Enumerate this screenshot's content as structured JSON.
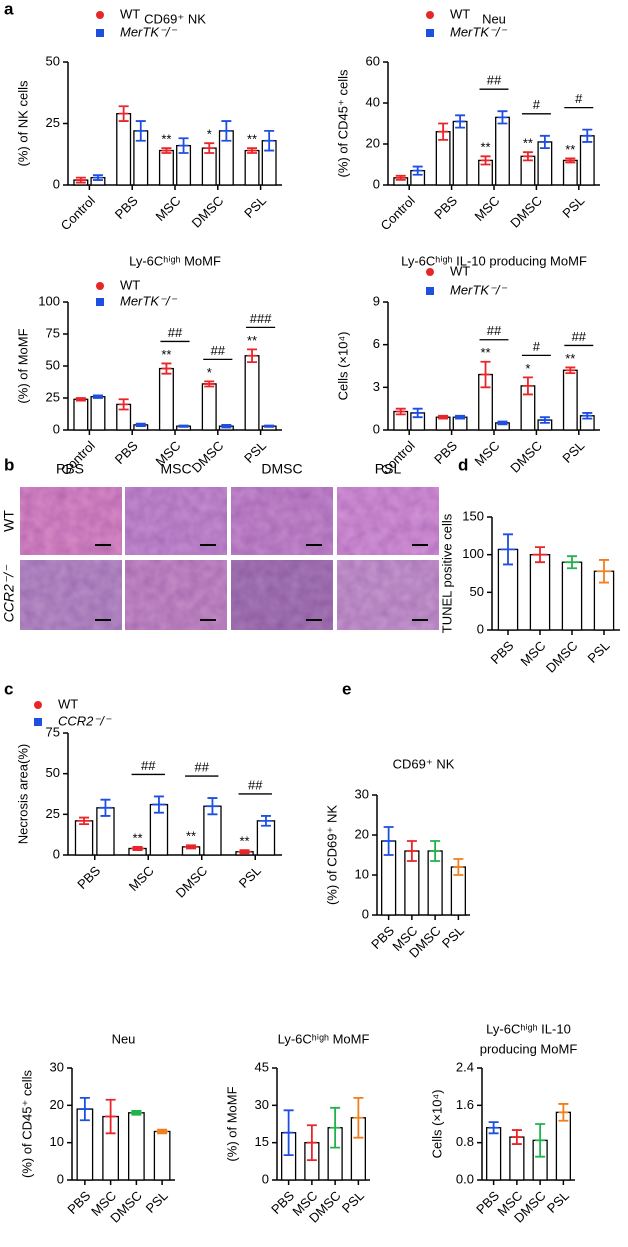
{
  "panel_labels": {
    "a": "a",
    "b": "b",
    "c": "c",
    "d": "d",
    "e": "e"
  },
  "histology": {
    "columns": [
      "PBS",
      "MSC",
      "DMSC",
      "PSL"
    ],
    "rows": [
      "WT",
      "CCR2⁻/⁻"
    ]
  },
  "chart_data": [
    {
      "type": "bar",
      "title": "CD69⁺ NK",
      "y_label": "(%) of NK cells",
      "categories": [
        "Control",
        "PBS",
        "MSC",
        "DMSC",
        "PSL"
      ],
      "series": [
        {
          "name": "WT",
          "color": "#e8262a",
          "marker": "circle",
          "values": [
            2,
            29,
            14,
            15,
            14
          ],
          "errors": [
            1,
            3,
            1,
            2,
            1
          ]
        },
        {
          "name": "MerTK⁻/⁻",
          "color": "#1f4fe0",
          "marker": "square",
          "values": [
            3,
            22,
            16,
            22,
            18
          ],
          "errors": [
            1,
            4,
            3,
            4,
            4
          ]
        }
      ],
      "ylim": [
        0,
        50
      ],
      "yticks": [
        0,
        25,
        50
      ],
      "significance": [
        null,
        null,
        "**",
        "*",
        "**"
      ],
      "legend": "top"
    },
    {
      "type": "bar",
      "title": "Neu",
      "y_label": "(%) of CD45⁺ cells",
      "categories": [
        "Control",
        "PBS",
        "MSC",
        "DMSC",
        "PSL"
      ],
      "series": [
        {
          "name": "WT",
          "color": "#e8262a",
          "marker": "circle",
          "values": [
            3.5,
            26,
            12,
            14,
            12
          ],
          "errors": [
            1,
            4,
            2,
            2,
            1
          ]
        },
        {
          "name": "MerTK⁻/⁻",
          "color": "#1f4fe0",
          "marker": "square",
          "values": [
            7,
            31,
            33,
            21,
            24
          ],
          "errors": [
            2,
            3,
            3,
            3,
            3
          ]
        }
      ],
      "ylim": [
        0,
        60
      ],
      "yticks": [
        0,
        20,
        40,
        60
      ],
      "significance": [
        null,
        null,
        "**",
        "**",
        "**"
      ],
      "comparison": [
        null,
        null,
        "##",
        "#",
        "#"
      ],
      "legend": "top"
    },
    {
      "type": "bar",
      "title": "Ly-6Cʰⁱᵍʰ MoMF",
      "y_label": "(%) of MoMF",
      "categories": [
        "Control",
        "PBS",
        "MSC",
        "DMSC",
        "PSL"
      ],
      "series": [
        {
          "name": "WT",
          "color": "#e8262a",
          "marker": "circle",
          "values": [
            24,
            20,
            48,
            36,
            58
          ],
          "errors": [
            1,
            4,
            4,
            2,
            5
          ]
        },
        {
          "name": "MerTK⁻/⁻",
          "color": "#1f4fe0",
          "marker": "square",
          "values": [
            26,
            4,
            3,
            3,
            3
          ],
          "errors": [
            1,
            1,
            0.5,
            1,
            0.5
          ]
        }
      ],
      "ylim": [
        0,
        100
      ],
      "yticks": [
        0,
        25,
        50,
        75,
        100
      ],
      "significance": [
        null,
        null,
        "**",
        "*",
        "**"
      ],
      "comparison": [
        null,
        null,
        "##",
        "##",
        "###"
      ],
      "legend": "top"
    },
    {
      "type": "bar",
      "title": "Ly-6Cʰⁱᵍʰ IL-10 producing MoMF",
      "y_label": "Cells (×10⁴)",
      "categories": [
        "Control",
        "PBS",
        "MSC",
        "DMSC",
        "PSL"
      ],
      "series": [
        {
          "name": "WT",
          "color": "#e8262a",
          "marker": "circle",
          "values": [
            1.3,
            0.9,
            3.9,
            3.1,
            4.2
          ],
          "errors": [
            0.2,
            0.1,
            0.9,
            0.6,
            0.2
          ]
        },
        {
          "name": "MerTK⁻/⁻",
          "color": "#1f4fe0",
          "marker": "square",
          "values": [
            1.2,
            0.9,
            0.5,
            0.7,
            1.0
          ],
          "errors": [
            0.3,
            0.1,
            0.1,
            0.2,
            0.2
          ]
        }
      ],
      "ylim": [
        0,
        9
      ],
      "yticks": [
        0,
        3,
        6,
        9
      ],
      "significance": [
        null,
        null,
        "**",
        "*",
        "**"
      ],
      "comparison": [
        null,
        null,
        "##",
        "#",
        "##"
      ],
      "legend": "top"
    },
    {
      "type": "bar",
      "y_label": "Necrosis area(%)",
      "categories": [
        "PBS",
        "MSC",
        "DMSC",
        "PSL"
      ],
      "series": [
        {
          "name": "WT",
          "color": "#e8262a",
          "marker": "circle",
          "values": [
            21,
            4,
            5,
            2
          ],
          "errors": [
            2,
            1,
            1,
            1
          ]
        },
        {
          "name": "CCR2⁻/⁻",
          "color": "#1f4fe0",
          "marker": "square",
          "values": [
            29,
            31,
            30,
            21
          ],
          "errors": [
            5,
            5,
            5,
            3
          ]
        }
      ],
      "ylim": [
        0,
        75
      ],
      "yticks": [
        0,
        25,
        50,
        75
      ],
      "significance": [
        null,
        "**",
        "**",
        "**"
      ],
      "comparison": [
        null,
        "##",
        "##",
        "##"
      ],
      "legend": "top"
    },
    {
      "type": "bar",
      "y_label": "TUNEL positive cells",
      "categories": [
        "PBS",
        "MSC",
        "DMSC",
        "PSL"
      ],
      "values": [
        107,
        100,
        90,
        78
      ],
      "errors": [
        20,
        10,
        8,
        15
      ],
      "colors": [
        "#1f4fe0",
        "#e8262a",
        "#22b14c",
        "#f07f1d"
      ],
      "ylim": [
        0,
        150
      ],
      "yticks": [
        0,
        50,
        100,
        150
      ]
    },
    {
      "type": "bar",
      "title": "CD69⁺ NK",
      "y_label": "(%) of CD69⁺ NK",
      "categories": [
        "PBS",
        "MSC",
        "DMSC",
        "PSL"
      ],
      "values": [
        18.5,
        16,
        16,
        12
      ],
      "errors": [
        3.5,
        2.5,
        2.5,
        2
      ],
      "colors": [
        "#1f4fe0",
        "#e8262a",
        "#22b14c",
        "#f07f1d"
      ],
      "ylim": [
        0,
        30
      ],
      "yticks": [
        0,
        10,
        20,
        30
      ]
    },
    {
      "type": "bar",
      "title": "Neu",
      "y_label": "(%) of CD45⁺ cells",
      "categories": [
        "PBS",
        "MSC",
        "DMSC",
        "PSL"
      ],
      "values": [
        19,
        17,
        18,
        13
      ],
      "errors": [
        3,
        4.5,
        0.5,
        0.5
      ],
      "colors": [
        "#1f4fe0",
        "#e8262a",
        "#22b14c",
        "#f07f1d"
      ],
      "ylim": [
        0,
        30
      ],
      "yticks": [
        0,
        10,
        20,
        30
      ]
    },
    {
      "type": "bar",
      "title": "Ly-6Cʰⁱᵍʰ MoMF",
      "y_label": "(%) of MoMF",
      "categories": [
        "PBS",
        "MSC",
        "DMSC",
        "PSL"
      ],
      "values": [
        19,
        15,
        21,
        25
      ],
      "errors": [
        9,
        7,
        8,
        8
      ],
      "colors": [
        "#1f4fe0",
        "#e8262a",
        "#22b14c",
        "#f07f1d"
      ],
      "ylim": [
        0,
        45
      ],
      "yticks": [
        0,
        15,
        30,
        45
      ]
    },
    {
      "type": "bar",
      "title": [
        "Ly-6Cʰⁱᵍʰ IL-10",
        "producing MoMF"
      ],
      "y_label": "Cells (×10⁴)",
      "categories": [
        "PBS",
        "MSC",
        "DMSC",
        "PSL"
      ],
      "values": [
        1.12,
        0.92,
        0.85,
        1.45
      ],
      "errors": [
        0.12,
        0.15,
        0.35,
        0.18
      ],
      "colors": [
        "#1f4fe0",
        "#e8262a",
        "#22b14c",
        "#f07f1d"
      ],
      "ylim": [
        0,
        2.4
      ],
      "yticks": [
        {
          "value": 0,
          "label": "0.0"
        },
        0.8,
        1.6,
        2.4
      ]
    }
  ]
}
